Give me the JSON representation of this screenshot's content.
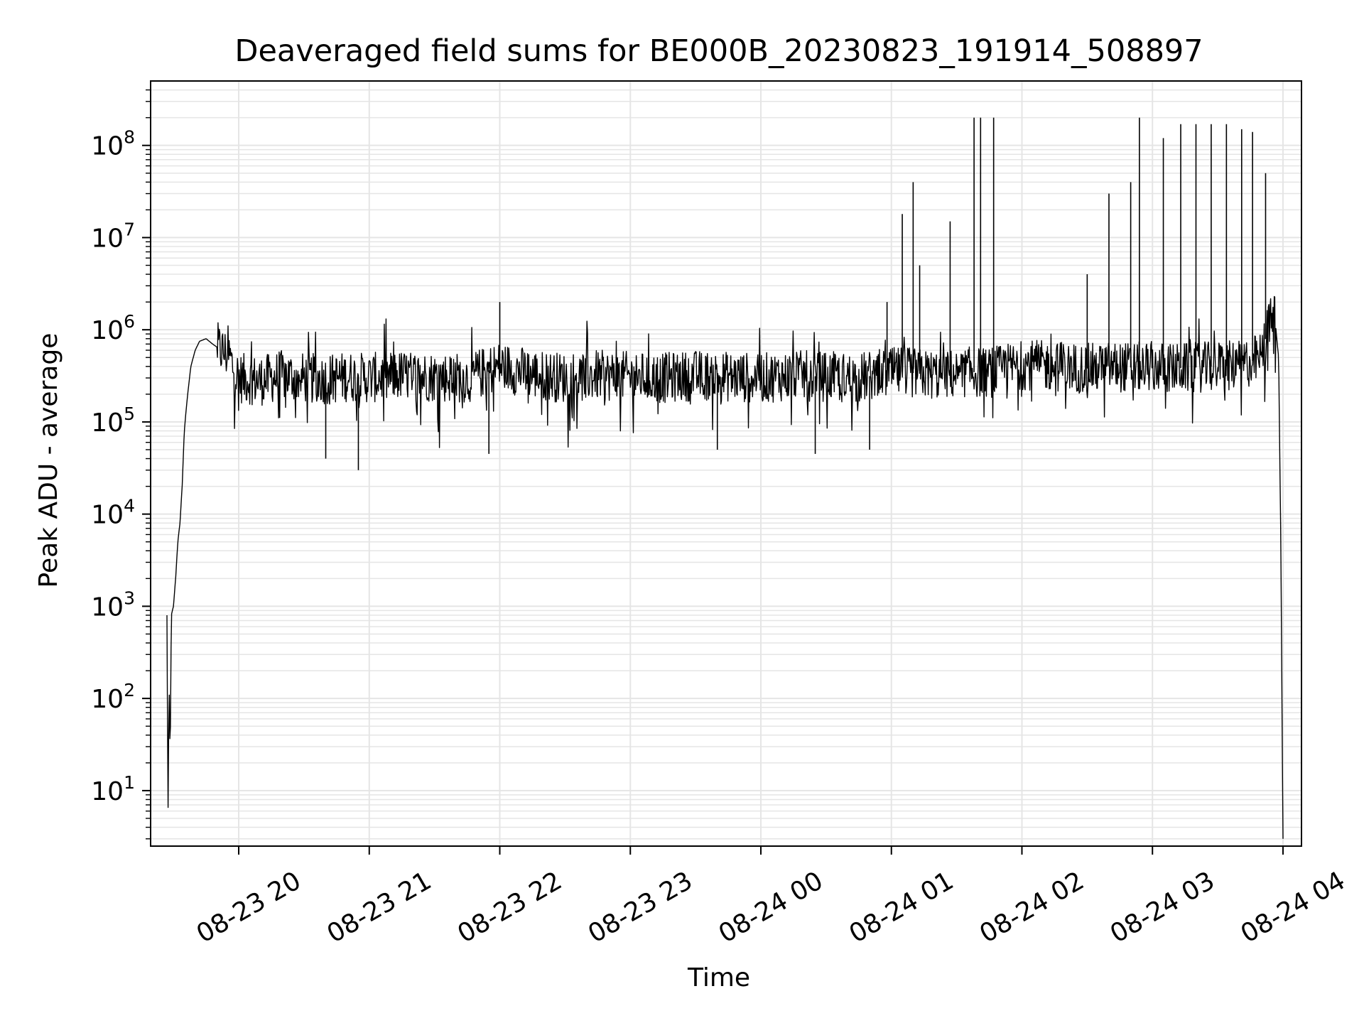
{
  "chart_data": {
    "type": "line",
    "title": "Deaveraged field sums for BE000B_20230823_191914_508897",
    "xlabel": "Time",
    "ylabel": "Peak ADU - average",
    "y_scale": "log",
    "ylim": [
      2.5,
      500000000
    ],
    "xlim": [
      "2023-08-23 19:19:30",
      "2023-08-24 04:08:30"
    ],
    "x_ticks": [
      {
        "label": "08-23 20",
        "value": "2023-08-23 20:00"
      },
      {
        "label": "08-23 21",
        "value": "2023-08-23 21:00"
      },
      {
        "label": "08-23 22",
        "value": "2023-08-23 22:00"
      },
      {
        "label": "08-23 23",
        "value": "2023-08-23 23:00"
      },
      {
        "label": "08-24 00",
        "value": "2023-08-24 00:00"
      },
      {
        "label": "08-24 01",
        "value": "2023-08-24 01:00"
      },
      {
        "label": "08-24 02",
        "value": "2023-08-24 02:00"
      },
      {
        "label": "08-24 03",
        "value": "2023-08-24 03:00"
      },
      {
        "label": "08-24 04",
        "value": "2023-08-24 04:00"
      }
    ],
    "y_ticks": [
      {
        "base": "10",
        "exp": "1",
        "value": 10
      },
      {
        "base": "10",
        "exp": "2",
        "value": 100
      },
      {
        "base": "10",
        "exp": "3",
        "value": 1000
      },
      {
        "base": "10",
        "exp": "4",
        "value": 10000
      },
      {
        "base": "10",
        "exp": "5",
        "value": 100000
      },
      {
        "base": "10",
        "exp": "6",
        "value": 1000000
      },
      {
        "base": "10",
        "exp": "7",
        "value": 10000000
      },
      {
        "base": "10",
        "exp": "8",
        "value": 100000000
      }
    ],
    "grid": true,
    "minor_grid": true,
    "line_color": "#000000",
    "grid_color": "#e5e5e5",
    "series": [
      {
        "x": [
          "2023-08-23 19:27",
          "2023-08-23 19:27:30",
          "2023-08-23 19:28",
          "2023-08-23 19:28:30",
          "2023-08-23 19:29",
          "2023-08-23 19:30",
          "2023-08-23 19:31",
          "2023-08-23 19:32",
          "2023-08-23 19:33",
          "2023-08-23 19:34",
          "2023-08-23 19:35",
          "2023-08-23 19:36",
          "2023-08-23 19:37",
          "2023-08-23 19:38",
          "2023-08-23 19:40",
          "2023-08-23 19:42",
          "2023-08-23 19:45",
          "2023-08-23 19:48",
          "2023-08-23 19:52",
          "2023-08-23 19:56",
          "2023-08-23 19:58",
          "2023-08-23 20:00",
          "2023-08-23 20:10",
          "2023-08-23 20:20",
          "2023-08-23 20:30",
          "2023-08-23 20:40",
          "2023-08-23 20:50",
          "2023-08-23 21:00",
          "2023-08-23 21:15",
          "2023-08-23 21:30",
          "2023-08-23 21:45",
          "2023-08-23 22:00",
          "2023-08-23 22:15",
          "2023-08-23 22:30",
          "2023-08-23 22:45",
          "2023-08-23 23:00",
          "2023-08-23 23:15",
          "2023-08-23 23:30",
          "2023-08-23 23:45",
          "2023-08-24 00:00",
          "2023-08-24 00:15",
          "2023-08-24 00:30",
          "2023-08-24 00:45",
          "2023-08-24 00:55",
          "2023-08-24 01:05",
          "2023-08-24 01:15",
          "2023-08-24 01:25",
          "2023-08-24 01:35",
          "2023-08-24 01:45",
          "2023-08-24 02:00",
          "2023-08-24 02:15",
          "2023-08-24 02:30",
          "2023-08-24 02:40",
          "2023-08-24 02:50",
          "2023-08-24 03:00",
          "2023-08-24 03:10",
          "2023-08-24 03:20",
          "2023-08-24 03:30",
          "2023-08-24 03:40",
          "2023-08-24 03:45",
          "2023-08-24 03:50",
          "2023-08-24 03:53",
          "2023-08-24 03:56",
          "2023-08-24 03:58",
          "2023-08-24 03:59",
          "2023-08-24 04:00"
        ],
        "y": [
          800,
          5,
          150,
          20,
          800,
          1000,
          2000,
          5000,
          8000,
          20000,
          80000,
          150000,
          250000,
          400000,
          600000,
          750000,
          800000,
          700000,
          600000,
          500000,
          350000,
          300000,
          280000,
          320000,
          300000,
          290000,
          310000,
          300000,
          320000,
          310000,
          300000,
          400000,
          330000,
          300000,
          320000,
          310000,
          300000,
          320000,
          310000,
          300000,
          320000,
          310000,
          300000,
          330000,
          350000,
          330000,
          320000,
          350000,
          340000,
          420000,
          400000,
          380000,
          400000,
          390000,
          400000,
          380000,
          390000,
          400000,
          410000,
          450000,
          500000,
          1000000,
          1500000,
          500000,
          5000,
          3
        ]
      }
    ],
    "spikes": [
      {
        "x": "2023-08-23 22:00",
        "y": 2000000
      },
      {
        "x": "2023-08-24 00:58",
        "y": 2000000
      },
      {
        "x": "2023-08-24 01:05",
        "y": 18000000
      },
      {
        "x": "2023-08-24 01:10",
        "y": 40000000
      },
      {
        "x": "2023-08-24 01:13",
        "y": 5000000
      },
      {
        "x": "2023-08-24 01:27",
        "y": 15000000
      },
      {
        "x": "2023-08-24 01:38",
        "y": 200000000
      },
      {
        "x": "2023-08-24 01:41",
        "y": 200000000
      },
      {
        "x": "2023-08-24 01:47",
        "y": 200000000
      },
      {
        "x": "2023-08-24 02:30",
        "y": 4000000
      },
      {
        "x": "2023-08-24 02:40",
        "y": 30000000
      },
      {
        "x": "2023-08-24 02:50",
        "y": 40000000
      },
      {
        "x": "2023-08-24 02:54",
        "y": 200000000
      },
      {
        "x": "2023-08-24 03:05",
        "y": 120000000
      },
      {
        "x": "2023-08-24 03:13",
        "y": 170000000
      },
      {
        "x": "2023-08-24 03:20",
        "y": 170000000
      },
      {
        "x": "2023-08-24 03:27",
        "y": 170000000
      },
      {
        "x": "2023-08-24 03:34",
        "y": 170000000
      },
      {
        "x": "2023-08-24 03:41",
        "y": 150000000
      },
      {
        "x": "2023-08-24 03:46",
        "y": 140000000
      },
      {
        "x": "2023-08-24 03:52",
        "y": 50000000
      }
    ],
    "dips": [
      {
        "x": "2023-08-23 20:40",
        "y": 40000
      },
      {
        "x": "2023-08-23 20:55",
        "y": 30000
      },
      {
        "x": "2023-08-23 21:55",
        "y": 45000
      },
      {
        "x": "2023-08-23 23:40",
        "y": 50000
      },
      {
        "x": "2023-08-24 00:25",
        "y": 45000
      },
      {
        "x": "2023-08-24 00:50",
        "y": 50000
      }
    ]
  }
}
